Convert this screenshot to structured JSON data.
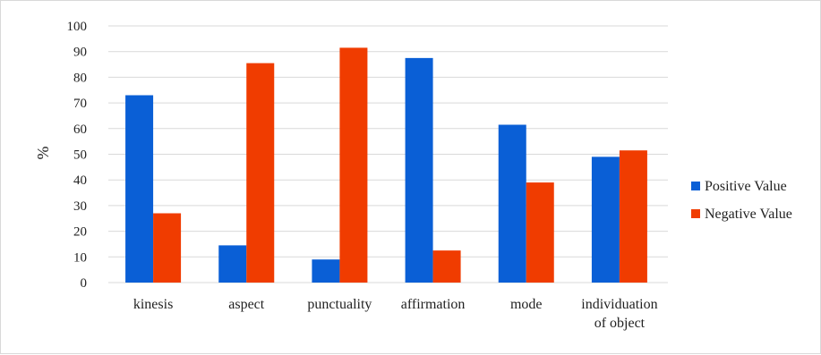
{
  "chart_data": {
    "type": "bar",
    "title": "",
    "xlabel": "",
    "ylabel": "%",
    "ylim": [
      0,
      100
    ],
    "yticks": [
      0,
      10,
      20,
      30,
      40,
      50,
      60,
      70,
      80,
      90,
      100
    ],
    "categories": [
      "kinesis",
      "aspect",
      "punctuality",
      "affirmation",
      "mode",
      "individuation of object"
    ],
    "category_lines": [
      [
        "kinesis"
      ],
      [
        "aspect"
      ],
      [
        "punctuality"
      ],
      [
        "affirmation"
      ],
      [
        "mode"
      ],
      [
        "individuation",
        "of object"
      ]
    ],
    "series": [
      {
        "name": "Positive Value",
        "color": "#0a5fd6",
        "values": [
          73,
          14.5,
          9,
          87.5,
          61.5,
          49
        ]
      },
      {
        "name": "Negative Value",
        "color": "#f03c00",
        "values": [
          27,
          85.5,
          91.5,
          12.5,
          39,
          51.5
        ]
      }
    ],
    "grid": true,
    "legend_position": "right"
  }
}
